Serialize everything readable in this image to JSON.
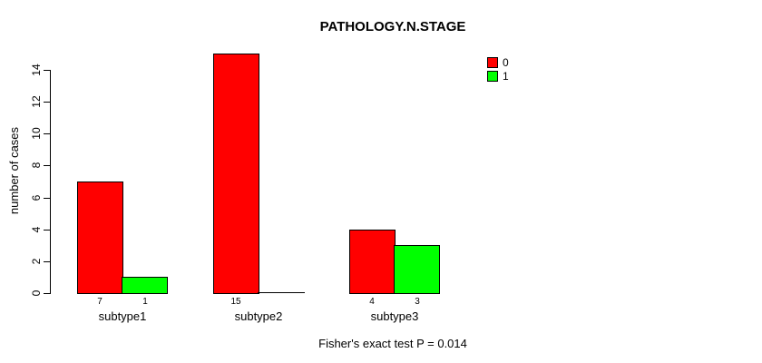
{
  "chart_data": {
    "type": "bar",
    "title": "PATHOLOGY.N.STAGE",
    "ylabel": "number of cases",
    "xlabel": "",
    "categories": [
      "subtype1",
      "subtype2",
      "subtype3"
    ],
    "series": [
      {
        "name": "0",
        "color": "#ff0000",
        "values": [
          7,
          15,
          4
        ]
      },
      {
        "name": "1",
        "color": "#00ff00",
        "values": [
          1,
          0,
          3
        ]
      }
    ],
    "bar_value_labels": {
      "subtype1": [
        "7",
        "1"
      ],
      "subtype2": [
        "15",
        ""
      ],
      "subtype3": [
        "4",
        "3"
      ]
    },
    "yticks": [
      0,
      2,
      4,
      6,
      8,
      10,
      12,
      14
    ],
    "ylim": [
      0,
      15
    ],
    "grid": false,
    "legend_position": "top-right",
    "bar_border_color": "#000000",
    "note": "Fisher's exact test P = 0.014"
  }
}
